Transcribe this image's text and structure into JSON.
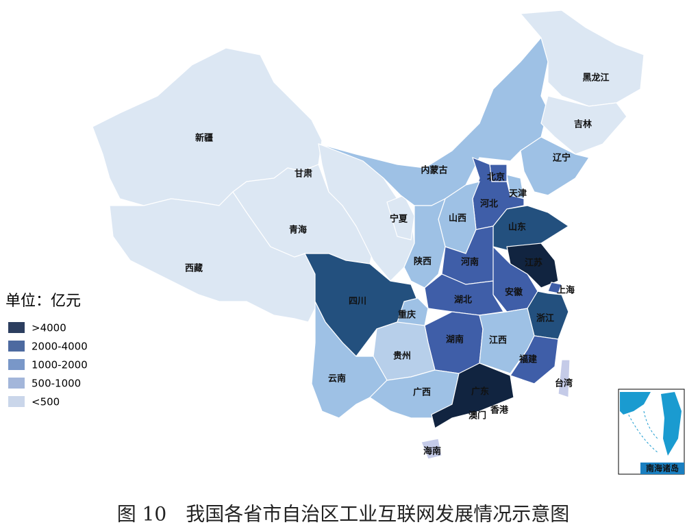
{
  "map": {
    "unit_label": "单位：亿元",
    "legend": [
      {
        "label": ">4000",
        "color": "#2c3e5f"
      },
      {
        "label": "2000-4000",
        "color": "#4d6aa0"
      },
      {
        "label": "1000-2000",
        "color": "#7997c8"
      },
      {
        "label": "500-1000",
        "color": "#a3b6da"
      },
      {
        "label": "<500",
        "color": "#cad6ea"
      }
    ],
    "regions": [
      {
        "name": "新疆",
        "color": "#dce7f3"
      },
      {
        "name": "西藏",
        "color": "#dce7f3"
      },
      {
        "name": "青海",
        "color": "#dce7f3"
      },
      {
        "name": "甘肃",
        "color": "#dce7f3"
      },
      {
        "name": "宁夏",
        "color": "#dce7f3"
      },
      {
        "name": "内蒙古",
        "color": "#9ec1e5"
      },
      {
        "name": "黑龙江",
        "color": "#dce7f3"
      },
      {
        "name": "吉林",
        "color": "#dce7f3"
      },
      {
        "name": "辽宁",
        "color": "#9ec1e5"
      },
      {
        "name": "北京",
        "color": "#3f5ea8"
      },
      {
        "name": "天津",
        "color": "#9ec1e5"
      },
      {
        "name": "河北",
        "color": "#3f5ea8"
      },
      {
        "name": "山西",
        "color": "#9ec1e5"
      },
      {
        "name": "陕西",
        "color": "#9ec1e5"
      },
      {
        "name": "山东",
        "color": "#23507e"
      },
      {
        "name": "河南",
        "color": "#3f5ea8"
      },
      {
        "name": "江苏",
        "color": "#112440"
      },
      {
        "name": "上海",
        "color": "#3f5ea8"
      },
      {
        "name": "安徽",
        "color": "#3f5ea8"
      },
      {
        "name": "湖北",
        "color": "#3f5ea8"
      },
      {
        "name": "四川",
        "color": "#23507e"
      },
      {
        "name": "重庆",
        "color": "#9ec1e5"
      },
      {
        "name": "浙江",
        "color": "#23507e"
      },
      {
        "name": "湖南",
        "color": "#3f5ea8"
      },
      {
        "name": "江西",
        "color": "#9ec1e5"
      },
      {
        "name": "福建",
        "color": "#3f5ea8"
      },
      {
        "name": "贵州",
        "color": "#b7cfea"
      },
      {
        "name": "云南",
        "color": "#9ec1e5"
      },
      {
        "name": "广西",
        "color": "#9ec1e5"
      },
      {
        "name": "广东",
        "color": "#112440"
      },
      {
        "name": "海南",
        "color": "#c5cbe8"
      },
      {
        "name": "台湾",
        "color": "#c5cbe8"
      }
    ],
    "special_regions": [
      "香港",
      "澳门"
    ],
    "inset_label": "南海诸岛"
  },
  "caption": "图 10　我国各省市自治区工业互联网发展情况示意图"
}
